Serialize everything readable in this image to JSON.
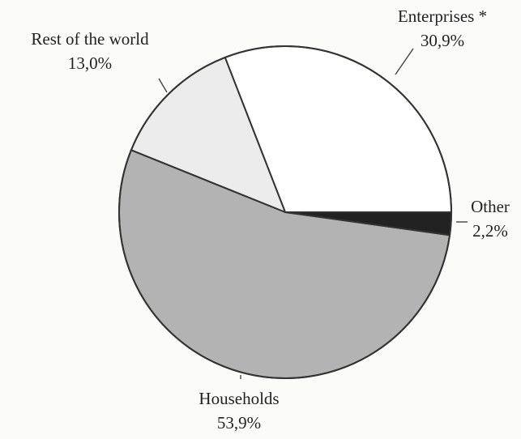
{
  "chart_data": {
    "type": "pie",
    "title": "",
    "start_angle_deg": 0,
    "direction": "counterclockwise",
    "slices": [
      {
        "label": "Enterprises *",
        "value": 30.9,
        "value_label": "30,9%",
        "color": "#ffffff"
      },
      {
        "label": "Rest of the world",
        "value": 13.0,
        "value_label": "13,0%",
        "color": "#ececec"
      },
      {
        "label": "Households",
        "value": 53.9,
        "value_label": "53,9%",
        "color": "#b3b3b3"
      },
      {
        "label": "Other",
        "value": 2.2,
        "value_label": "2,2%",
        "color": "#222222"
      }
    ],
    "legend": "none"
  }
}
